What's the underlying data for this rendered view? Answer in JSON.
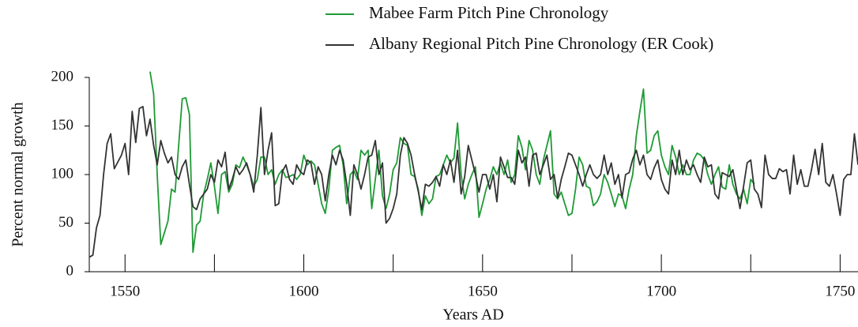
{
  "chart_data": {
    "type": "line",
    "x_label": "Years AD",
    "y_label": "Percent normal growth",
    "xlim": [
      1540,
      1755
    ],
    "ylim": [
      0,
      200
    ],
    "xticks": [
      1550,
      1600,
      1650,
      1700,
      1750
    ],
    "xminor_ticks": [
      1575,
      1625,
      1675,
      1725
    ],
    "yticks": [
      0,
      50,
      100,
      150,
      200
    ],
    "legend": "top-right",
    "x": [
      1540,
      1541,
      1542,
      1543,
      1544,
      1545,
      1546,
      1547,
      1548,
      1549,
      1550,
      1551,
      1552,
      1553,
      1554,
      1555,
      1556,
      1557,
      1558,
      1559,
      1560,
      1561,
      1562,
      1563,
      1564,
      1565,
      1566,
      1567,
      1568,
      1569,
      1570,
      1571,
      1572,
      1573,
      1574,
      1575,
      1576,
      1577,
      1578,
      1579,
      1580,
      1581,
      1582,
      1583,
      1584,
      1585,
      1586,
      1587,
      1588,
      1589,
      1590,
      1591,
      1592,
      1593,
      1594,
      1595,
      1596,
      1597,
      1598,
      1599,
      1600,
      1601,
      1602,
      1603,
      1604,
      1605,
      1606,
      1607,
      1608,
      1609,
      1610,
      1611,
      1612,
      1613,
      1614,
      1615,
      1616,
      1617,
      1618,
      1619,
      1620,
      1621,
      1622,
      1623,
      1624,
      1625,
      1626,
      1627,
      1628,
      1629,
      1630,
      1631,
      1632,
      1633,
      1634,
      1635,
      1636,
      1637,
      1638,
      1639,
      1640,
      1641,
      1642,
      1643,
      1644,
      1645,
      1646,
      1647,
      1648,
      1649,
      1650,
      1651,
      1652,
      1653,
      1654,
      1655,
      1656,
      1657,
      1658,
      1659,
      1660,
      1661,
      1662,
      1663,
      1664,
      1665,
      1666,
      1667,
      1668,
      1669,
      1670,
      1671,
      1672,
      1673,
      1674,
      1675,
      1676,
      1677,
      1678,
      1679,
      1680,
      1681,
      1682,
      1683,
      1684,
      1685,
      1686,
      1687,
      1688,
      1689,
      1690,
      1691,
      1692,
      1693,
      1694,
      1695,
      1696,
      1697,
      1698,
      1699,
      1700,
      1701,
      1702,
      1703,
      1704,
      1705,
      1706,
      1707,
      1708,
      1709,
      1710,
      1711,
      1712,
      1713,
      1714,
      1715,
      1716,
      1717,
      1718,
      1719,
      1720,
      1721,
      1722,
      1723,
      1724,
      1725,
      1726,
      1727,
      1728,
      1729,
      1730,
      1731,
      1732,
      1733,
      1734,
      1735,
      1736,
      1737,
      1738,
      1739,
      1740,
      1741,
      1742,
      1743,
      1744,
      1745,
      1746,
      1747,
      1748,
      1749,
      1750,
      1751,
      1752,
      1753,
      1754,
      1755
    ],
    "series": [
      {
        "name": "Mabee Farm Pitch Pine Chronology",
        "color": "#1f9a35",
        "values": [
          null,
          null,
          null,
          null,
          null,
          null,
          null,
          null,
          null,
          null,
          null,
          null,
          null,
          null,
          null,
          null,
          null,
          206,
          183,
          100,
          28,
          40,
          52,
          85,
          82,
          130,
          178,
          179,
          162,
          20,
          48,
          52,
          80,
          95,
          112,
          88,
          60,
          100,
          103,
          82,
          90,
          110,
          107,
          118,
          110,
          100,
          88,
          95,
          118,
          118,
          100,
          105,
          90,
          100,
          105,
          97,
          98,
          100,
          95,
          100,
          120,
          110,
          114,
          110,
          90,
          70,
          60,
          85,
          125,
          128,
          130,
          110,
          70,
          100,
          104,
          95,
          125,
          120,
          125,
          65,
          95,
          125,
          78,
          65,
          80,
          105,
          112,
          138,
          132,
          130,
          100,
          98,
          85,
          58,
          78,
          70,
          75,
          98,
          100,
          110,
          120,
          112,
          117,
          153,
          100,
          75,
          90,
          100,
          108,
          56,
          70,
          85,
          95,
          108,
          100,
          112,
          100,
          115,
          92,
          100,
          140,
          128,
          105,
          135,
          125,
          100,
          90,
          115,
          130,
          145,
          80,
          75,
          82,
          70,
          58,
          60,
          85,
          118,
          110,
          88,
          86,
          68,
          72,
          80,
          100,
          92,
          80,
          67,
          80,
          78,
          65,
          85,
          100,
          140,
          165,
          188,
          122,
          125,
          140,
          145,
          120,
          108,
          100,
          130,
          118,
          100,
          110,
          100,
          100,
          115,
          122,
          120,
          115,
          100,
          90,
          100,
          108,
          87,
          85,
          110,
          90,
          80,
          75,
          85,
          70,
          95,
          90,
          null,
          null,
          null,
          null,
          null,
          null,
          null,
          null,
          null,
          null,
          null,
          null,
          null,
          null,
          null,
          null,
          null,
          null,
          null,
          null,
          null,
          null,
          null,
          null,
          null,
          null,
          null,
          null,
          null
        ]
      },
      {
        "name": "Albany Regional Pitch Pine Chronology (ER Cook)",
        "color": "#333333",
        "values": [
          15,
          17,
          45,
          58,
          100,
          132,
          142,
          106,
          113,
          120,
          132,
          100,
          165,
          133,
          168,
          170,
          140,
          157,
          130,
          110,
          135,
          122,
          112,
          118,
          100,
          95,
          108,
          115,
          90,
          67,
          64,
          75,
          80,
          85,
          100,
          92,
          115,
          108,
          123,
          85,
          95,
          108,
          100,
          105,
          112,
          100,
          82,
          120,
          169,
          100,
          125,
          143,
          68,
          70,
          103,
          110,
          95,
          90,
          110,
          103,
          100,
          115,
          112,
          90,
          108,
          100,
          73,
          100,
          120,
          110,
          125,
          115,
          90,
          58,
          110,
          100,
          85,
          100,
          118,
          120,
          135,
          100,
          112,
          50,
          55,
          65,
          80,
          120,
          138,
          132,
          120,
          100,
          83,
          64,
          90,
          88,
          92,
          98,
          88,
          110,
          100,
          115,
          92,
          125,
          80,
          98,
          130,
          115,
          100,
          82,
          100,
          100,
          85,
          100,
          72,
          118,
          108,
          97,
          97,
          90,
          125,
          112,
          118,
          88,
          120,
          122,
          100,
          110,
          120,
          95,
          100,
          76,
          95,
          108,
          122,
          120,
          110,
          100,
          88,
          100,
          110,
          100,
          96,
          100,
          120,
          100,
          112,
          90,
          100,
          76,
          100,
          102,
          116,
          125,
          110,
          120,
          100,
          95,
          107,
          115,
          95,
          85,
          80,
          115,
          100,
          125,
          100,
          115,
          105,
          110,
          100,
          92,
          118,
          108,
          110,
          80,
          75,
          102,
          100,
          98,
          105,
          85,
          65,
          88,
          112,
          115,
          85,
          80,
          66,
          120,
          100,
          96,
          96,
          106,
          103,
          105,
          80,
          120,
          90,
          105,
          88,
          88,
          105,
          126,
          100,
          132,
          92,
          88,
          100,
          80,
          58,
          95,
          100,
          100,
          142,
          110
        ]
      }
    ]
  }
}
